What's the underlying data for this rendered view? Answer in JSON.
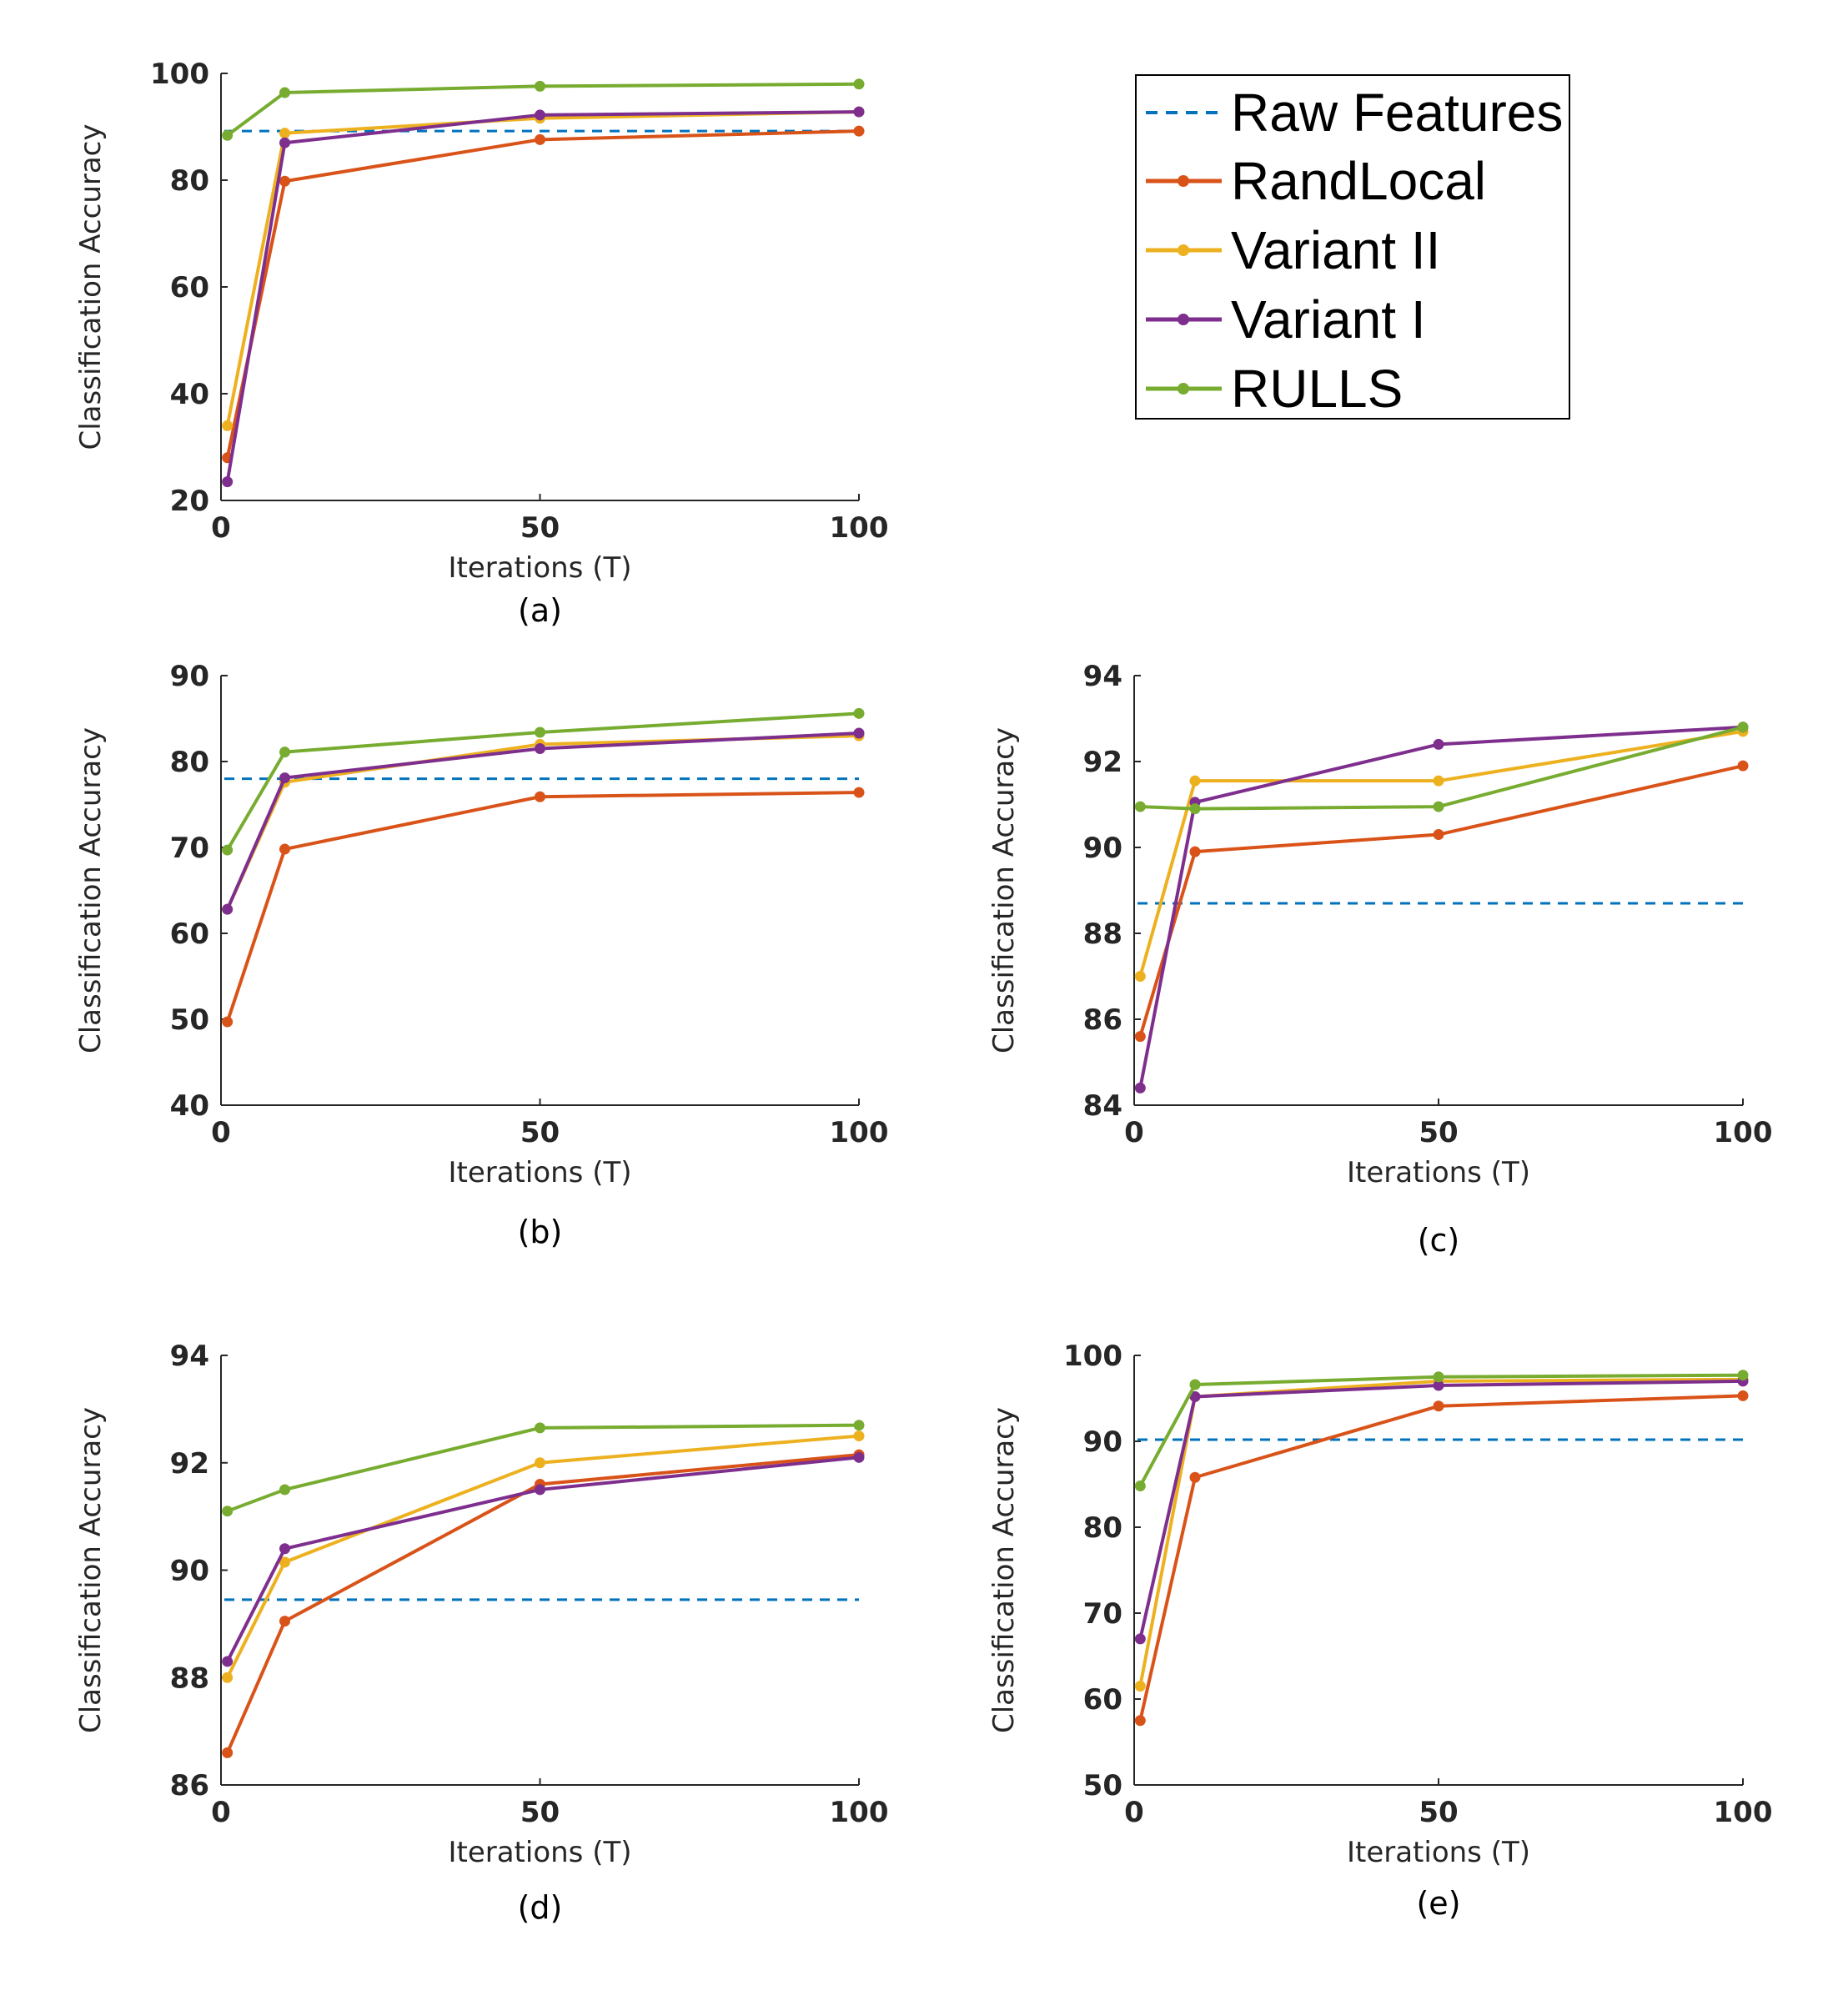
{
  "legend": {
    "entries": [
      {
        "label": "Raw Features",
        "style": "dashed",
        "color": "#0072BD"
      },
      {
        "label": "RandLocal",
        "style": "solid",
        "color": "#D95319"
      },
      {
        "label": "Variant II",
        "style": "solid",
        "color": "#EDB120"
      },
      {
        "label": "Variant I",
        "style": "solid",
        "color": "#7E2F8E"
      },
      {
        "label": "RULLS",
        "style": "solid",
        "color": "#77AC30"
      }
    ]
  },
  "chart_data": [
    {
      "id": "a",
      "type": "line",
      "caption": "(a)",
      "xlabel": "Iterations (T)",
      "ylabel": "Classification Accuracy",
      "xlim": [
        0,
        100
      ],
      "ylim": [
        20,
        100
      ],
      "xticks": [
        0,
        50,
        100
      ],
      "yticks": [
        20,
        40,
        60,
        80,
        100
      ],
      "x": [
        1,
        10,
        50,
        100
      ],
      "baseline": {
        "name": "Raw Features",
        "value": 89.2
      },
      "series": [
        {
          "name": "RandLocal",
          "color": "#D95319",
          "values": [
            28,
            79.8,
            87.6,
            89.2
          ]
        },
        {
          "name": "Variant II",
          "color": "#EDB120",
          "values": [
            34,
            88.8,
            91.6,
            92.8
          ]
        },
        {
          "name": "Variant I",
          "color": "#7E2F8E",
          "values": [
            23.5,
            87,
            92.2,
            92.8
          ]
        },
        {
          "name": "RULLS",
          "color": "#77AC30",
          "values": [
            88.4,
            96.4,
            97.6,
            98
          ]
        }
      ]
    },
    {
      "id": "b",
      "type": "line",
      "caption": "(b)",
      "xlabel": "Iterations (T)",
      "ylabel": "Classification Accuracy",
      "xlim": [
        0,
        100
      ],
      "ylim": [
        40,
        90
      ],
      "xticks": [
        0,
        50,
        100
      ],
      "yticks": [
        40,
        50,
        60,
        70,
        80,
        90
      ],
      "x": [
        1,
        10,
        50,
        100
      ],
      "baseline": {
        "name": "Raw Features",
        "value": 78
      },
      "series": [
        {
          "name": "RandLocal",
          "color": "#D95319",
          "values": [
            49.7,
            69.8,
            75.9,
            76.4
          ]
        },
        {
          "name": "Variant II",
          "color": "#EDB120",
          "values": [
            62.8,
            77.6,
            82,
            83
          ]
        },
        {
          "name": "Variant I",
          "color": "#7E2F8E",
          "values": [
            62.8,
            78.1,
            81.5,
            83.3
          ]
        },
        {
          "name": "RULLS",
          "color": "#77AC30",
          "values": [
            69.7,
            81.1,
            83.4,
            85.6
          ]
        }
      ]
    },
    {
      "id": "c",
      "type": "line",
      "caption": "(c)",
      "xlabel": "Iterations (T)",
      "ylabel": "Classification Accuracy",
      "xlim": [
        0,
        100
      ],
      "ylim": [
        84,
        94
      ],
      "xticks": [
        0,
        50,
        100
      ],
      "yticks": [
        84,
        86,
        88,
        90,
        92,
        94
      ],
      "x": [
        1,
        10,
        50,
        100
      ],
      "baseline": {
        "name": "Raw Features",
        "value": 88.7
      },
      "series": [
        {
          "name": "RandLocal",
          "color": "#D95319",
          "values": [
            85.6,
            89.9,
            90.3,
            91.9
          ]
        },
        {
          "name": "Variant II",
          "color": "#EDB120",
          "values": [
            87,
            91.55,
            91.55,
            92.7
          ]
        },
        {
          "name": "Variant I",
          "color": "#7E2F8E",
          "values": [
            84.4,
            91.05,
            92.4,
            92.8
          ]
        },
        {
          "name": "RULLS",
          "color": "#77AC30",
          "values": [
            90.95,
            90.9,
            90.95,
            92.8
          ]
        }
      ]
    },
    {
      "id": "d",
      "type": "line",
      "caption": "(d)",
      "xlabel": "Iterations (T)",
      "ylabel": "Classification Accuracy",
      "xlim": [
        0,
        100
      ],
      "ylim": [
        86,
        94
      ],
      "xticks": [
        0,
        50,
        100
      ],
      "yticks": [
        86,
        88,
        90,
        92,
        94
      ],
      "x": [
        1,
        10,
        50,
        100
      ],
      "baseline": {
        "name": "Raw Features",
        "value": 89.45
      },
      "series": [
        {
          "name": "RandLocal",
          "color": "#D95319",
          "values": [
            86.6,
            89.05,
            91.6,
            92.15
          ]
        },
        {
          "name": "Variant II",
          "color": "#EDB120",
          "values": [
            88,
            90.15,
            92,
            92.5
          ]
        },
        {
          "name": "Variant I",
          "color": "#7E2F8E",
          "values": [
            88.3,
            90.4,
            91.5,
            92.1
          ]
        },
        {
          "name": "RULLS",
          "color": "#77AC30",
          "values": [
            91.1,
            91.5,
            92.65,
            92.7
          ]
        }
      ]
    },
    {
      "id": "e",
      "type": "line",
      "caption": "(e)",
      "xlabel": "Iterations (T)",
      "ylabel": "Classification Accuracy",
      "xlim": [
        0,
        100
      ],
      "ylim": [
        50,
        100
      ],
      "xticks": [
        0,
        50,
        100
      ],
      "yticks": [
        50,
        60,
        70,
        80,
        90,
        100
      ],
      "x": [
        1,
        10,
        50,
        100
      ],
      "baseline": {
        "name": "Raw Features",
        "value": 90.2
      },
      "series": [
        {
          "name": "RandLocal",
          "color": "#D95319",
          "values": [
            57.5,
            85.8,
            94.1,
            95.3
          ]
        },
        {
          "name": "Variant II",
          "color": "#EDB120",
          "values": [
            61.5,
            95.2,
            97,
            97.2
          ]
        },
        {
          "name": "Variant I",
          "color": "#7E2F8E",
          "values": [
            67,
            95.2,
            96.5,
            97
          ]
        },
        {
          "name": "RULLS",
          "color": "#77AC30",
          "values": [
            84.8,
            96.6,
            97.5,
            97.7
          ]
        }
      ]
    }
  ]
}
